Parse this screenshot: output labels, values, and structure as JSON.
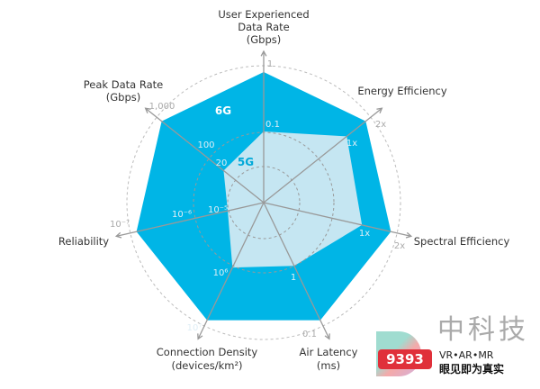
{
  "chart_data": {
    "type": "radar",
    "axes": [
      {
        "label": [
          "User Experienced",
          "Data Rate",
          "(Gbps)"
        ],
        "value_5g": "0.1",
        "value_6g": "1"
      },
      {
        "label": [
          "Energy Efficiency"
        ],
        "value_5g": "1x",
        "value_6g": "2x"
      },
      {
        "label": [
          "Spectral Efficiency"
        ],
        "value_5g": "1x",
        "value_6g": "2x"
      },
      {
        "label": [
          "Air Latency",
          "(ms)"
        ],
        "value_5g": "1",
        "value_6g": "0.1"
      },
      {
        "label": [
          "Connection Density",
          "(devices/km²)"
        ],
        "value_5g": "10⁶",
        "value_6g": "10⁷"
      },
      {
        "label": [
          "Reliability"
        ],
        "value_5g": "10⁻⁵",
        "value_6g": "10⁻⁷"
      },
      {
        "label": [
          "Peak Data Rate",
          "(Gbps)"
        ],
        "value_5g": "20",
        "value_6g": "1,000"
      }
    ],
    "extra_ticks": [
      {
        "axis": 5,
        "text": "10⁻⁶"
      },
      {
        "axis": 6,
        "text": "100"
      }
    ],
    "series": [
      {
        "name": "5G",
        "color": "#c5e6f2"
      },
      {
        "name": "6G",
        "color": "#00b5e6"
      }
    ]
  },
  "watermark": {
    "line1": "VR•AR•MR",
    "line2": "眼见即为真实",
    "brand": "中科技",
    "logo_text": "9393"
  }
}
